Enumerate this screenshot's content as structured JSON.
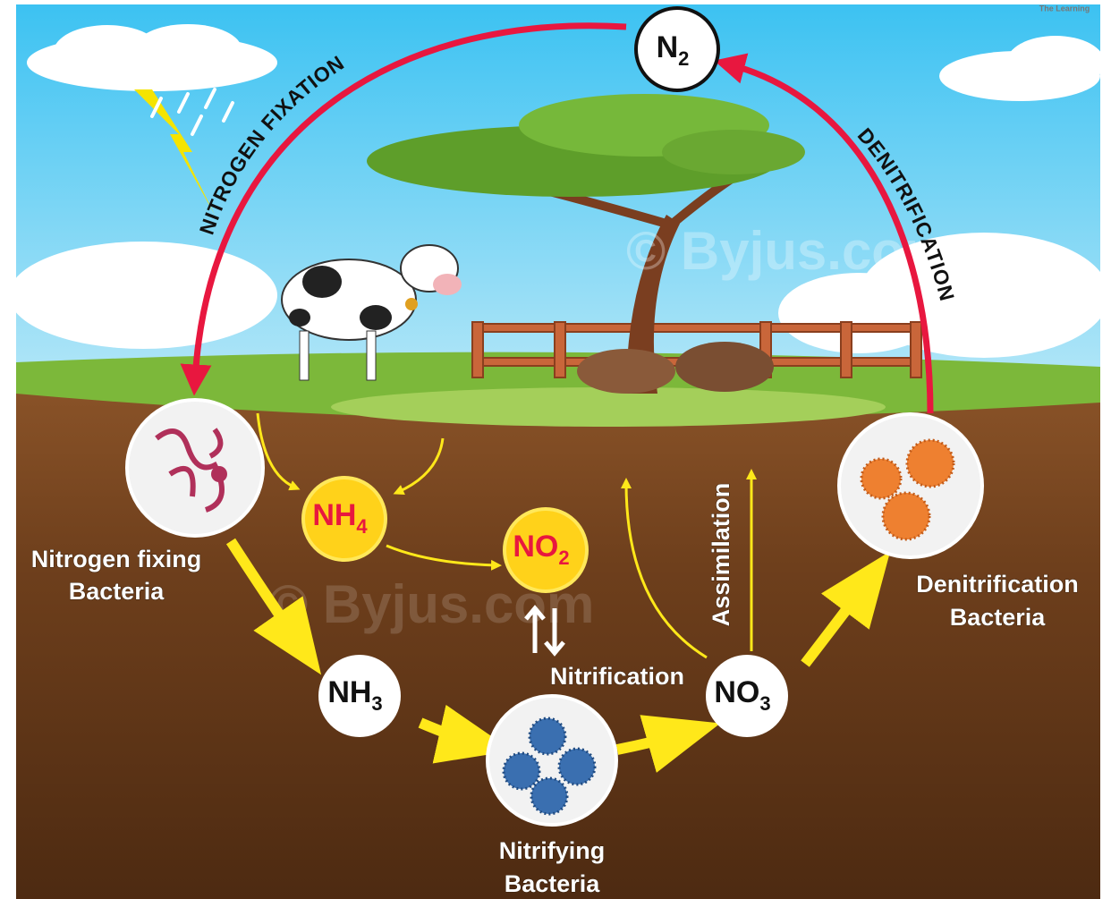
{
  "watermark": "© Byjus.com",
  "corner_text": "The Learning",
  "cycle_labels": {
    "fixation": "NITROGEN FIXATION",
    "denitrification": "DENITRIFICATION",
    "nitrification": "Nitrification",
    "assimilation": "Assimilation"
  },
  "compounds": [
    {
      "symbol": "N",
      "sub": "2"
    },
    {
      "symbol": "NH",
      "sub": "4"
    },
    {
      "symbol": "NO",
      "sub": "2"
    },
    {
      "symbol": "NH",
      "sub": "3"
    },
    {
      "symbol": "NO",
      "sub": "3"
    }
  ],
  "bacteria": [
    {
      "lines": [
        "Nitrogen fixing",
        "Bacteria"
      ]
    },
    {
      "lines": [
        "Nitrifying",
        "Bacteria"
      ]
    },
    {
      "lines": [
        "Denitrification",
        "Bacteria"
      ]
    }
  ]
}
